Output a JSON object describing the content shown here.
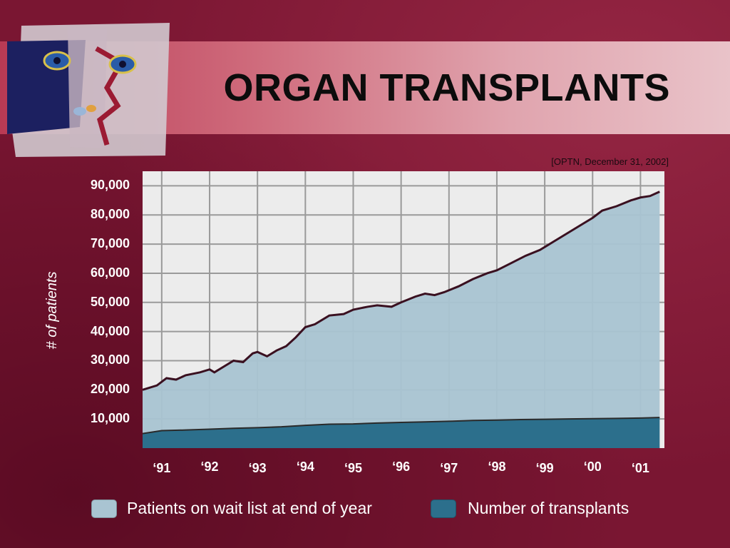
{
  "slide": {
    "title": "ORGAN TRANSPLANTS",
    "source": "[OPTN, December 31, 2002]"
  },
  "colors": {
    "background": "#7a1632",
    "plot_background": "#ececec",
    "grid": "#9a9a9a",
    "waitlist_fill": "#a9c4d2",
    "waitlist_line": "#3a1020",
    "transplant_fill": "#2c6f8c",
    "text": "#ffffff"
  },
  "chart_data": {
    "type": "area",
    "title": "",
    "ylabel": "# of patients",
    "xlabel": "",
    "ylim": [
      0,
      95000
    ],
    "xlim": [
      1990.6,
      2001.5
    ],
    "y_ticks": [
      "90,000",
      "80,000",
      "70,000",
      "60,000",
      "50,000",
      "40,000",
      "30,000",
      "20,000",
      "10,000"
    ],
    "x_ticks": [
      "‘91",
      "‘92",
      "‘93",
      "‘94",
      "‘95",
      "‘96",
      "‘97",
      "‘98",
      "‘99",
      "‘00",
      "‘01"
    ],
    "grid": true,
    "legend": {
      "placement": "bottom",
      "entries": [
        "Patients on wait list at end of year",
        "Number of transplants"
      ]
    },
    "series": [
      {
        "name": "Patients on wait list at end of year",
        "x": [
          1990.6,
          1990.9,
          1991.1,
          1991.3,
          1991.5,
          1991.8,
          1992.0,
          1992.1,
          1992.3,
          1992.5,
          1992.7,
          1992.9,
          1993.0,
          1993.2,
          1993.4,
          1993.6,
          1993.8,
          1994.0,
          1994.2,
          1994.5,
          1994.8,
          1995.0,
          1995.3,
          1995.5,
          1995.8,
          1996.0,
          1996.3,
          1996.5,
          1996.7,
          1996.9,
          1997.2,
          1997.5,
          1997.8,
          1998.0,
          1998.3,
          1998.6,
          1998.9,
          1999.2,
          1999.5,
          1999.8,
          2000.0,
          2000.2,
          2000.5,
          2000.8,
          2001.0,
          2001.2,
          2001.4
        ],
        "values": [
          20000,
          21500,
          24000,
          23500,
          25000,
          26000,
          27000,
          26000,
          28000,
          30000,
          29500,
          32500,
          33000,
          31500,
          33500,
          35000,
          38000,
          41500,
          42500,
          45500,
          46000,
          47500,
          48500,
          49000,
          48500,
          50000,
          52000,
          53000,
          52500,
          53500,
          55500,
          58000,
          60000,
          61000,
          63500,
          66000,
          68000,
          71000,
          74000,
          77000,
          79000,
          81500,
          83000,
          85000,
          86000,
          86500,
          88000
        ]
      },
      {
        "name": "Number of transplants",
        "x": [
          1990.6,
          1991.0,
          1991.5,
          1992.0,
          1992.5,
          1993.0,
          1993.5,
          1994.0,
          1994.5,
          1995.0,
          1995.5,
          1996.0,
          1996.5,
          1997.0,
          1997.5,
          1998.0,
          1998.5,
          1999.0,
          1999.5,
          2000.0,
          2000.5,
          2001.0,
          2001.4
        ],
        "values": [
          5000,
          6000,
          6200,
          6500,
          6800,
          7000,
          7300,
          7800,
          8200,
          8300,
          8600,
          8800,
          9000,
          9200,
          9500,
          9600,
          9800,
          9900,
          10000,
          10100,
          10200,
          10300,
          10500
        ]
      }
    ]
  }
}
